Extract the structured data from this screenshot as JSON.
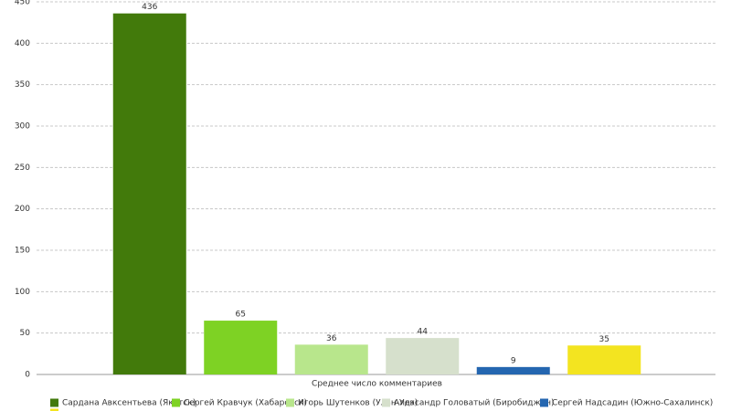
{
  "chart_data": {
    "type": "bar",
    "categories": [
      "Среднее число комментариев"
    ],
    "series": [
      {
        "name": "Сардана Авксентьева (Якутск)",
        "color": "#427a0b",
        "values": [
          436
        ]
      },
      {
        "name": "Сергей Кравчук (Хабаровск)",
        "color": "#7ed224",
        "values": [
          65
        ]
      },
      {
        "name": "Игорь Шутенков (Улан-Удэ)",
        "color": "#b8e68c",
        "values": [
          36
        ]
      },
      {
        "name": "Александр Головатый (Биробиджан)",
        "color": "#d6e0cc",
        "values": [
          44
        ]
      },
      {
        "name": "Сергей Надсадин (Южно-Сахалинск)",
        "color": "#2466b0",
        "values": [
          9
        ]
      },
      {
        "color": "#f3e420",
        "values": [
          35
        ]
      }
    ],
    "ylim": [
      0,
      450
    ],
    "yticks": [
      0,
      50,
      100,
      150,
      200,
      250,
      300,
      350,
      400,
      450
    ],
    "grid": true,
    "legend": "bottom"
  }
}
